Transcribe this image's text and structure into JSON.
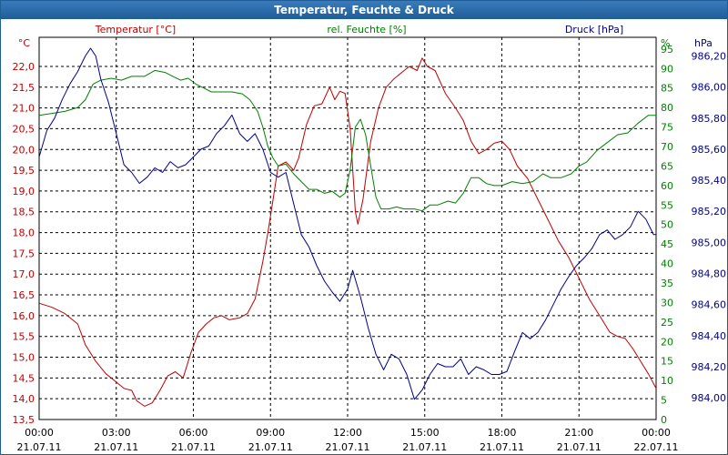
{
  "title": "Temperatur, Feuchte & Druck",
  "colors": {
    "temperature": "#c00000",
    "humidity": "#008000",
    "pressure": "#00008b",
    "grid": "#000000",
    "titlebar": "#1f5d96"
  },
  "chart_data": {
    "type": "line",
    "title": "Temperatur, Feuchte & Druck",
    "x_ticks": [
      {
        "hours": 0,
        "time": "00:00",
        "date": "21.07.11"
      },
      {
        "hours": 3,
        "time": "03:00",
        "date": "21.07.11"
      },
      {
        "hours": 6,
        "time": "06:00",
        "date": "21.07.11"
      },
      {
        "hours": 9,
        "time": "09:00",
        "date": "21.07.11"
      },
      {
        "hours": 12,
        "time": "12:00",
        "date": "21.07.11"
      },
      {
        "hours": 15,
        "time": "15:00",
        "date": "21.07.11"
      },
      {
        "hours": 18,
        "time": "18:00",
        "date": "21.07.11"
      },
      {
        "hours": 21,
        "time": "21:00",
        "date": "21.07.11"
      },
      {
        "hours": 24,
        "time": "00:00",
        "date": "22.07.11"
      }
    ],
    "xlim": [
      0,
      24
    ],
    "axes": {
      "temperature": {
        "label": "Temperatur [°C]",
        "unit": "°C",
        "ylim": [
          13.5,
          22.7
        ],
        "ticks": [
          "13,5",
          "14,0",
          "14,5",
          "15,0",
          "15,5",
          "16,0",
          "16,5",
          "17,0",
          "17,5",
          "18,0",
          "18,5",
          "19,0",
          "19,5",
          "20,0",
          "20,5",
          "21,0",
          "21,5",
          "22,0"
        ]
      },
      "humidity": {
        "label": "rel. Feuchte [%]",
        "unit": "%",
        "ylim": [
          0,
          98
        ],
        "ticks": [
          "0",
          "5",
          "10",
          "15",
          "20",
          "25",
          "30",
          "35",
          "40",
          "45",
          "50",
          "55",
          "60",
          "65",
          "70",
          "75",
          "80",
          "85",
          "90",
          "95"
        ]
      },
      "pressure": {
        "label": "Druck [hPa]",
        "unit": "hPa",
        "ylim": [
          983.86,
          986.32
        ],
        "ticks": [
          "984,00",
          "984,20",
          "984,40",
          "984,60",
          "984,80",
          "985,00",
          "985,20",
          "985,40",
          "985,60",
          "985,80",
          "986,00",
          "986,20"
        ]
      }
    },
    "series": [
      {
        "name": "Temperatur [°C]",
        "axis": "temperature",
        "points": [
          [
            0,
            16.3
          ],
          [
            0.5,
            16.2
          ],
          [
            1,
            16.05
          ],
          [
            1.5,
            15.8
          ],
          [
            1.8,
            15.3
          ],
          [
            2.2,
            14.9
          ],
          [
            2.6,
            14.6
          ],
          [
            3,
            14.4
          ],
          [
            3.3,
            14.25
          ],
          [
            3.6,
            14.2
          ],
          [
            3.8,
            13.95
          ],
          [
            4.1,
            13.82
          ],
          [
            4.4,
            13.9
          ],
          [
            4.7,
            14.2
          ],
          [
            5,
            14.55
          ],
          [
            5.3,
            14.65
          ],
          [
            5.6,
            14.5
          ],
          [
            5.9,
            15.1
          ],
          [
            6.2,
            15.6
          ],
          [
            6.5,
            15.8
          ],
          [
            6.8,
            15.95
          ],
          [
            7.1,
            16.0
          ],
          [
            7.4,
            15.9
          ],
          [
            7.8,
            15.95
          ],
          [
            8.1,
            16.05
          ],
          [
            8.4,
            16.4
          ],
          [
            8.7,
            17.3
          ],
          [
            8.9,
            18.0
          ],
          [
            9.1,
            18.8
          ],
          [
            9.3,
            19.6
          ],
          [
            9.6,
            19.7
          ],
          [
            9.9,
            19.5
          ],
          [
            10.1,
            19.8
          ],
          [
            10.4,
            20.6
          ],
          [
            10.7,
            21.05
          ],
          [
            11,
            21.1
          ],
          [
            11.3,
            21.5
          ],
          [
            11.5,
            21.2
          ],
          [
            11.7,
            21.4
          ],
          [
            11.9,
            21.35
          ],
          [
            12.1,
            20.5
          ],
          [
            12.3,
            18.5
          ],
          [
            12.4,
            18.2
          ],
          [
            12.6,
            18.8
          ],
          [
            12.9,
            20.2
          ],
          [
            13.2,
            21.0
          ],
          [
            13.5,
            21.5
          ],
          [
            13.8,
            21.7
          ],
          [
            14.1,
            21.85
          ],
          [
            14.4,
            22.0
          ],
          [
            14.7,
            21.9
          ],
          [
            14.9,
            22.2
          ],
          [
            15.1,
            22.0
          ],
          [
            15.4,
            21.9
          ],
          [
            15.8,
            21.35
          ],
          [
            16.2,
            21.0
          ],
          [
            16.5,
            20.7
          ],
          [
            16.8,
            20.2
          ],
          [
            17.1,
            19.9
          ],
          [
            17.4,
            20.0
          ],
          [
            17.7,
            20.15
          ],
          [
            18,
            20.2
          ],
          [
            18.3,
            20.0
          ],
          [
            18.6,
            19.6
          ],
          [
            19,
            19.3
          ],
          [
            19.4,
            18.8
          ],
          [
            19.8,
            18.3
          ],
          [
            20.2,
            17.8
          ],
          [
            20.6,
            17.4
          ],
          [
            21,
            16.9
          ],
          [
            21.4,
            16.4
          ],
          [
            21.8,
            16.0
          ],
          [
            22.2,
            15.6
          ],
          [
            22.5,
            15.5
          ],
          [
            22.8,
            15.45
          ],
          [
            23.1,
            15.2
          ],
          [
            23.4,
            14.9
          ],
          [
            23.7,
            14.6
          ],
          [
            24,
            14.25
          ]
        ]
      },
      {
        "name": "rel. Feuchte [%]",
        "axis": "humidity",
        "points": [
          [
            0,
            78
          ],
          [
            0.5,
            78.5
          ],
          [
            1,
            79
          ],
          [
            1.5,
            80
          ],
          [
            1.8,
            82
          ],
          [
            2.1,
            86
          ],
          [
            2.4,
            87
          ],
          [
            2.8,
            87.5
          ],
          [
            3.2,
            87
          ],
          [
            3.6,
            88
          ],
          [
            4.1,
            88
          ],
          [
            4.5,
            89.5
          ],
          [
            4.9,
            89
          ],
          [
            5.2,
            88
          ],
          [
            5.5,
            87
          ],
          [
            5.8,
            87.5
          ],
          [
            6.1,
            86
          ],
          [
            6.4,
            85
          ],
          [
            6.7,
            84
          ],
          [
            7.1,
            84
          ],
          [
            7.5,
            84
          ],
          [
            7.9,
            83.5
          ],
          [
            8.2,
            82
          ],
          [
            8.5,
            79
          ],
          [
            8.7,
            75
          ],
          [
            8.9,
            70
          ],
          [
            9.1,
            67
          ],
          [
            9.3,
            65
          ],
          [
            9.6,
            65.5
          ],
          [
            9.9,
            63
          ],
          [
            10.2,
            61
          ],
          [
            10.5,
            59
          ],
          [
            10.8,
            59
          ],
          [
            11.1,
            58
          ],
          [
            11.4,
            58.5
          ],
          [
            11.7,
            57
          ],
          [
            11.9,
            58
          ],
          [
            12.1,
            64
          ],
          [
            12.3,
            75
          ],
          [
            12.5,
            77
          ],
          [
            12.7,
            73
          ],
          [
            12.9,
            65
          ],
          [
            13.1,
            57
          ],
          [
            13.3,
            54
          ],
          [
            13.6,
            54
          ],
          [
            13.9,
            54.5
          ],
          [
            14.2,
            54
          ],
          [
            14.6,
            54
          ],
          [
            14.9,
            53.5
          ],
          [
            15.2,
            55
          ],
          [
            15.5,
            55
          ],
          [
            15.9,
            56
          ],
          [
            16.2,
            55.5
          ],
          [
            16.5,
            58
          ],
          [
            16.8,
            62
          ],
          [
            17.1,
            62
          ],
          [
            17.4,
            60.5
          ],
          [
            17.7,
            60
          ],
          [
            18,
            60
          ],
          [
            18.4,
            61
          ],
          [
            18.8,
            60.5
          ],
          [
            19.2,
            61
          ],
          [
            19.6,
            63
          ],
          [
            19.9,
            62
          ],
          [
            20.3,
            62
          ],
          [
            20.7,
            63
          ],
          [
            21.0,
            65
          ],
          [
            21.3,
            66
          ],
          [
            21.7,
            69
          ],
          [
            22.1,
            71
          ],
          [
            22.5,
            73
          ],
          [
            22.9,
            73.5
          ],
          [
            23.3,
            76
          ],
          [
            23.7,
            78
          ],
          [
            24,
            78
          ]
        ]
      },
      {
        "name": "Druck [hPa]",
        "axis": "pressure",
        "points": [
          [
            0,
            985.55
          ],
          [
            0.3,
            985.72
          ],
          [
            0.6,
            985.8
          ],
          [
            0.9,
            985.92
          ],
          [
            1.2,
            986.02
          ],
          [
            1.5,
            986.1
          ],
          [
            1.8,
            986.2
          ],
          [
            2.0,
            986.25
          ],
          [
            2.2,
            986.2
          ],
          [
            2.4,
            986.05
          ],
          [
            2.7,
            985.9
          ],
          [
            3.0,
            985.7
          ],
          [
            3.3,
            985.5
          ],
          [
            3.6,
            985.45
          ],
          [
            3.9,
            985.38
          ],
          [
            4.2,
            985.42
          ],
          [
            4.5,
            985.48
          ],
          [
            4.8,
            985.45
          ],
          [
            5.1,
            985.52
          ],
          [
            5.4,
            985.48
          ],
          [
            5.7,
            985.5
          ],
          [
            6.0,
            985.55
          ],
          [
            6.3,
            985.6
          ],
          [
            6.6,
            985.62
          ],
          [
            6.9,
            985.7
          ],
          [
            7.2,
            985.75
          ],
          [
            7.5,
            985.82
          ],
          [
            7.8,
            985.7
          ],
          [
            8.1,
            985.65
          ],
          [
            8.4,
            985.7
          ],
          [
            8.7,
            985.6
          ],
          [
            9.0,
            985.45
          ],
          [
            9.3,
            985.42
          ],
          [
            9.6,
            985.45
          ],
          [
            9.9,
            985.25
          ],
          [
            10.2,
            985.05
          ],
          [
            10.5,
            984.97
          ],
          [
            10.8,
            984.85
          ],
          [
            11.1,
            984.75
          ],
          [
            11.4,
            984.68
          ],
          [
            11.7,
            984.62
          ],
          [
            12.0,
            984.7
          ],
          [
            12.2,
            984.82
          ],
          [
            12.5,
            984.65
          ],
          [
            12.8,
            984.45
          ],
          [
            13.1,
            984.28
          ],
          [
            13.4,
            984.18
          ],
          [
            13.7,
            984.28
          ],
          [
            14.0,
            984.25
          ],
          [
            14.3,
            984.15
          ],
          [
            14.6,
            983.99
          ],
          [
            14.9,
            984.05
          ],
          [
            15.2,
            984.15
          ],
          [
            15.5,
            984.22
          ],
          [
            15.8,
            984.2
          ],
          [
            16.1,
            984.2
          ],
          [
            16.4,
            984.25
          ],
          [
            16.7,
            984.15
          ],
          [
            17.0,
            984.2
          ],
          [
            17.3,
            984.18
          ],
          [
            17.6,
            984.15
          ],
          [
            17.9,
            984.15
          ],
          [
            18.2,
            984.17
          ],
          [
            18.5,
            984.3
          ],
          [
            18.8,
            984.42
          ],
          [
            19.1,
            984.38
          ],
          [
            19.4,
            984.42
          ],
          [
            19.7,
            984.5
          ],
          [
            20.0,
            984.6
          ],
          [
            20.3,
            984.7
          ],
          [
            20.6,
            984.78
          ],
          [
            20.9,
            984.85
          ],
          [
            21.2,
            984.9
          ],
          [
            21.5,
            984.96
          ],
          [
            21.8,
            985.05
          ],
          [
            22.1,
            985.08
          ],
          [
            22.4,
            985.02
          ],
          [
            22.7,
            985.05
          ],
          [
            23.0,
            985.1
          ],
          [
            23.3,
            985.2
          ],
          [
            23.6,
            985.15
          ],
          [
            23.9,
            985.05
          ],
          [
            24,
            985.05
          ]
        ]
      }
    ]
  }
}
